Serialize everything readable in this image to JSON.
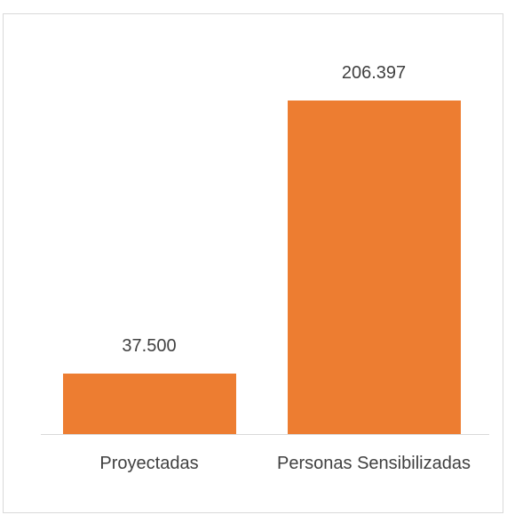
{
  "chart_data": {
    "type": "bar",
    "categories": [
      "Proyectadas",
      "Personas Sensibilizadas"
    ],
    "values": [
      37500,
      206397
    ],
    "value_labels": [
      "37.500",
      "206.397"
    ],
    "color": "#ed7d31"
  }
}
